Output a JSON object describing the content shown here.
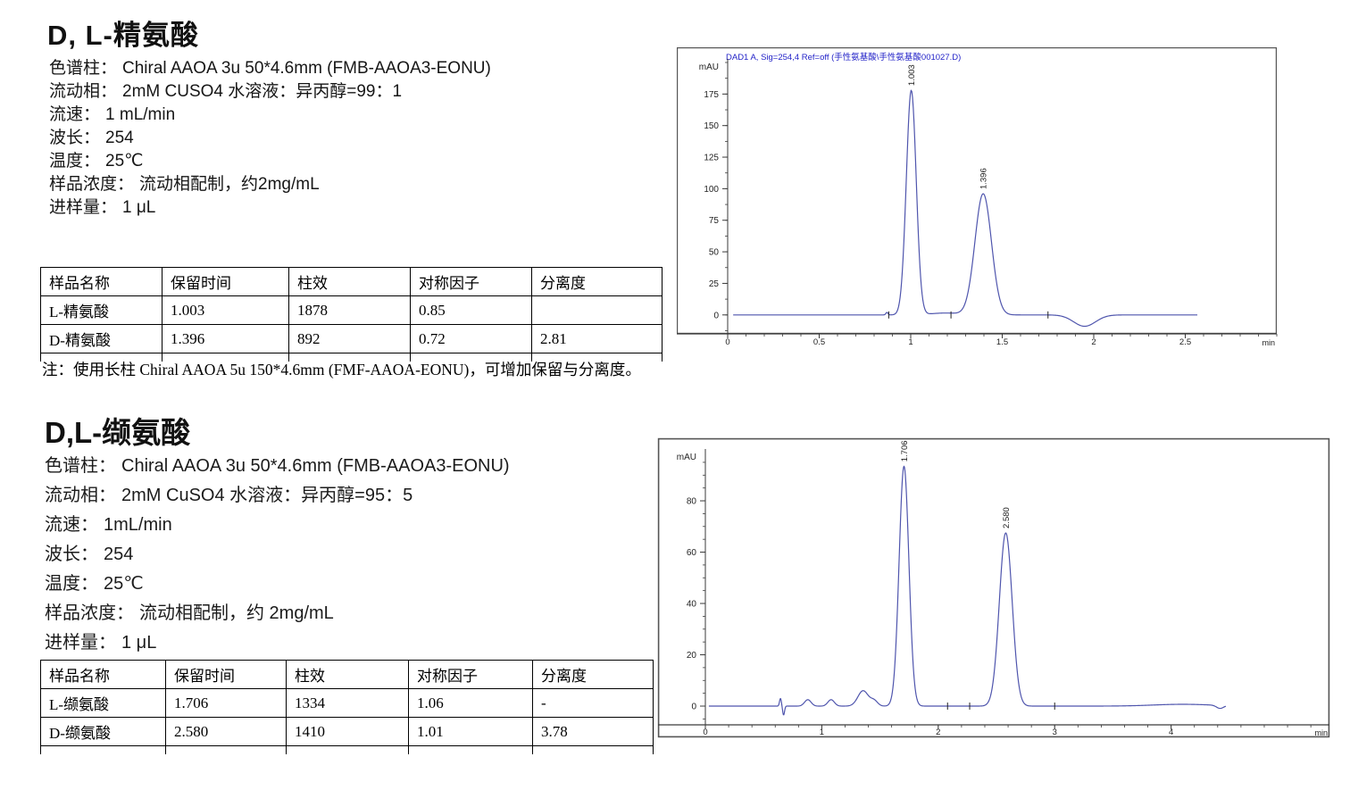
{
  "sections": [
    {
      "title": "D, L-精氨酸",
      "params": [
        {
          "label": "色谱柱：",
          "value": "Chiral AAOA 3u 50*4.6mm (FMB-AAOA3-EONU)"
        },
        {
          "label": "流动相：",
          "value": "2mM CUSO4 水溶液：异丙醇=99：1"
        },
        {
          "label": "流速：",
          "value": "1 mL/min"
        },
        {
          "label": "波长：",
          "value": "254"
        },
        {
          "label": "温度：",
          "value": "25℃"
        },
        {
          "label": "样品浓度：",
          "value": "流动相配制，约2mg/mL"
        },
        {
          "label": "进样量：",
          "value": "1 μL"
        }
      ],
      "table": {
        "headers": [
          "样品名称",
          "保留时间",
          "柱效",
          "对称因子",
          "分离度"
        ],
        "rows": [
          [
            "L-精氨酸",
            "1.003",
            "1878",
            "0.85",
            ""
          ],
          [
            "D-精氨酸",
            "1.396",
            "892",
            "0.72",
            "2.81"
          ]
        ]
      },
      "note": "注：使用长柱 Chiral AAOA 5u 150*4.6mm (FMF-AAOA-EONU)，可增加保留与分离度。"
    },
    {
      "title": "D,L-缬氨酸",
      "params": [
        {
          "label": "色谱柱：",
          "value": "Chiral AAOA 3u 50*4.6mm (FMB-AAOA3-EONU)"
        },
        {
          "label": "流动相：",
          "value": "2mM CuSO4 水溶液：异丙醇=95：5"
        },
        {
          "label": "流速：",
          "value": "1mL/min"
        },
        {
          "label": "波长：",
          "value": "254"
        },
        {
          "label": "温度：",
          "value": "25℃"
        },
        {
          "label": "样品浓度：",
          "value": "流动相配制，约 2mg/mL"
        },
        {
          "label": "进样量：",
          "value": "1 μL"
        }
      ],
      "table": {
        "headers": [
          "样品名称",
          "保留时间",
          "柱效",
          "对称因子",
          "分离度"
        ],
        "rows": [
          [
            "L-缬氨酸",
            "1.706",
            "1334",
            "1.06",
            "-"
          ],
          [
            "D-缬氨酸",
            "2.580",
            "1410",
            "1.01",
            "3.78"
          ]
        ]
      }
    }
  ],
  "chart_data": [
    {
      "type": "line",
      "title": "DAD1 A, Sig=254,4 Ref=off (手性氨基酸\\手性氨基酸001027.D)",
      "title_color": "#2323c8",
      "ylabel": "mAU",
      "xlabel": "min",
      "xlim": [
        0,
        3.0
      ],
      "ylim": [
        -15,
        200
      ],
      "xticks": [
        0,
        0.5,
        1,
        1.5,
        2,
        2.5
      ],
      "yticks": [
        0,
        25,
        50,
        75,
        100,
        125,
        150,
        175
      ],
      "x_minor_step": 0.1,
      "y_minor_step": 12.5,
      "line_color": "#4f55ad",
      "trace_start": 0.03,
      "trace_end": 2.57,
      "peaks": [
        {
          "rt": 1.003,
          "height": 178,
          "sigma": 0.027,
          "label": "1.003"
        },
        {
          "rt": 1.396,
          "height": 96,
          "sigma": 0.045,
          "label": "1.396"
        }
      ],
      "features": [
        {
          "rt": 0.87,
          "height": 2,
          "sigma": 0.006
        },
        {
          "rt": 1.19,
          "height": 1.5,
          "sigma": 0.08
        },
        {
          "rt": 1.95,
          "height": -9,
          "sigma": 0.06
        }
      ],
      "integration_marks": [
        0.88,
        1.22,
        1.75
      ]
    },
    {
      "type": "line",
      "title": "",
      "title_color": "#2323c8",
      "ylabel": "mAU",
      "xlabel": "min",
      "xlim": [
        0,
        5.36
      ],
      "ylim": [
        -7.3,
        98.8
      ],
      "xticks": [
        0,
        1,
        2,
        3,
        4
      ],
      "yticks": [
        0,
        20,
        40,
        60,
        80
      ],
      "x_minor_step": 0.2,
      "y_minor_step": 5,
      "line_color": "#4f55ad",
      "trace_start": 0.03,
      "trace_end": 4.47,
      "peaks": [
        {
          "rt": 1.706,
          "height": 93.5,
          "sigma": 0.042,
          "label": "1.706"
        },
        {
          "rt": 2.58,
          "height": 67.5,
          "sigma": 0.055,
          "label": "2.580"
        }
      ],
      "features": [
        {
          "rt": 0.645,
          "height": 3,
          "sigma": 0.008
        },
        {
          "rt": 0.672,
          "height": -3.5,
          "sigma": 0.008
        },
        {
          "rt": 0.88,
          "height": 2.5,
          "sigma": 0.028
        },
        {
          "rt": 1.08,
          "height": 2.5,
          "sigma": 0.028
        },
        {
          "rt": 1.355,
          "height": 6,
          "sigma": 0.045
        },
        {
          "rt": 1.45,
          "height": 2,
          "sigma": 0.03
        },
        {
          "rt": 4.1,
          "height": 0.7,
          "sigma": 0.25
        },
        {
          "rt": 4.42,
          "height": -1.2,
          "sigma": 0.03
        }
      ],
      "integration_marks": [
        2.08,
        2.27,
        3.0
      ]
    }
  ]
}
